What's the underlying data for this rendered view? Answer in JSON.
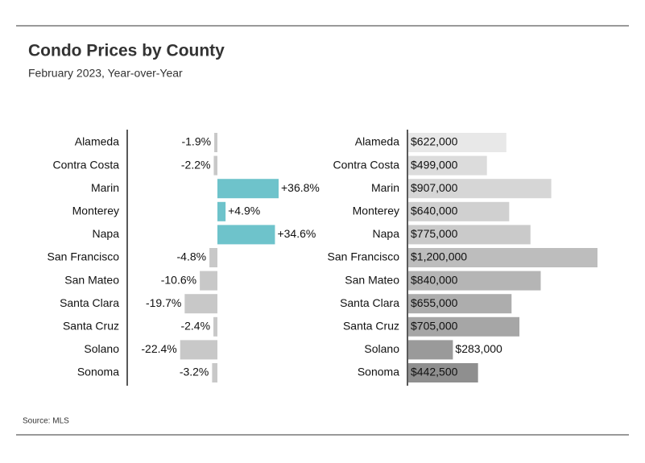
{
  "title": "Condo Prices by County",
  "subtitle": "February 2023, Year-over-Year",
  "source": "Source: MLS",
  "chart_data": [
    {
      "type": "bar",
      "orientation": "horizontal",
      "categories": [
        "Alameda",
        "Contra Costa",
        "Marin",
        "Monterey",
        "Napa",
        "San Francisco",
        "San Mateo",
        "Santa Clara",
        "Santa Cruz",
        "Solano",
        "Sonoma"
      ],
      "values": [
        -1.9,
        -2.2,
        36.8,
        4.9,
        34.6,
        -4.8,
        -10.6,
        -19.7,
        -2.4,
        -22.4,
        -3.2
      ],
      "value_labels": [
        "-1.9%",
        "-2.2%",
        "+36.8%",
        "+4.9%",
        "+34.6%",
        "-4.8%",
        "-10.6%",
        "-19.7%",
        "-2.4%",
        "-22.4%",
        "-3.2%"
      ],
      "colors": [
        "#c8c8c8",
        "#c8c8c8",
        "#6ec3cb",
        "#6ec3cb",
        "#6ec3cb",
        "#c8c8c8",
        "#c8c8c8",
        "#c8c8c8",
        "#c8c8c8",
        "#c8c8c8",
        "#c8c8c8"
      ]
    },
    {
      "type": "bar",
      "orientation": "horizontal",
      "categories": [
        "Alameda",
        "Contra Costa",
        "Marin",
        "Monterey",
        "Napa",
        "San Francisco",
        "San Mateo",
        "Santa Clara",
        "Santa Cruz",
        "Solano",
        "Sonoma"
      ],
      "values": [
        622000,
        499000,
        907000,
        640000,
        775000,
        1200000,
        840000,
        655000,
        705000,
        283000,
        442500
      ],
      "value_labels": [
        "$622,000",
        "$499,000",
        "$907,000",
        "$640,000",
        "$775,000",
        "$1,200,000",
        "$840,000",
        "$655,000",
        "$705,000",
        "$283,000",
        "$442,500"
      ],
      "colors": [
        "#e8e8e8",
        "#dcdcdc",
        "#d6d6d6",
        "#d0d0d0",
        "#cacaca",
        "#bdbdbd",
        "#b5b5b5",
        "#adadad",
        "#a6a6a6",
        "#9a9a9a",
        "#8f8f8f"
      ]
    }
  ]
}
